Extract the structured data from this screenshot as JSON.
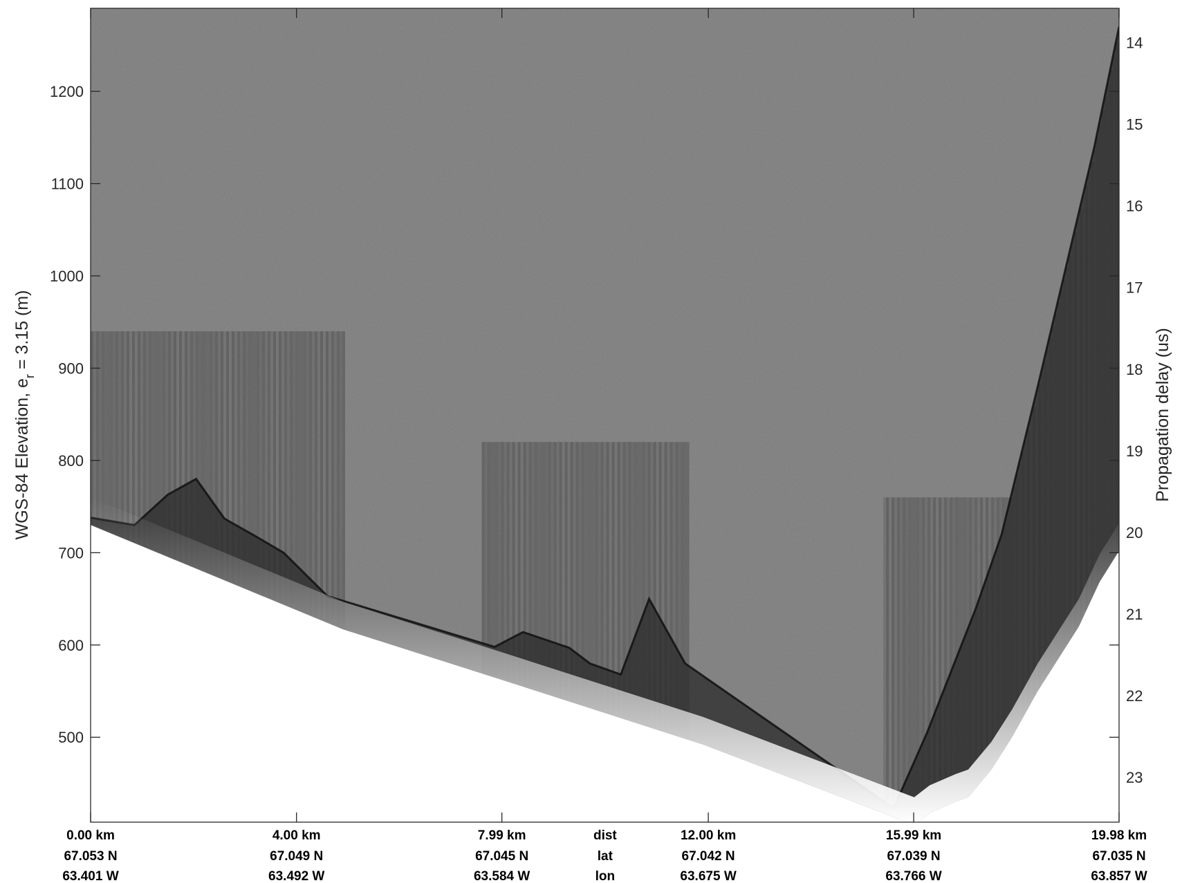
{
  "chart_data": {
    "type": "heatmap",
    "description_kind": "radar echogram",
    "title": "",
    "colormap": "grayscale",
    "left_axis": {
      "label_main": "WGS-84 Elevation, e",
      "label_sub": "r",
      "label_tail": " = 3.15 (m)",
      "ticks": [
        500,
        600,
        700,
        800,
        900,
        1000,
        1100,
        1200
      ],
      "tick_labels": [
        "500",
        "600",
        "700",
        "800",
        "900",
        "1000",
        "1100",
        "1200"
      ],
      "ylim": [
        408,
        1290
      ]
    },
    "right_axis": {
      "label": "Propagation delay (us)",
      "ticks": [
        14,
        15,
        16,
        17,
        18,
        19,
        20,
        21,
        22,
        23
      ],
      "tick_labels": [
        "14",
        "15",
        "16",
        "17",
        "18",
        "19",
        "20",
        "21",
        "22",
        "23"
      ],
      "ylim": [
        13.58,
        23.55
      ]
    },
    "x_axis": {
      "xlim": [
        0,
        19.98
      ],
      "ticks": [
        0.0,
        4.0,
        7.99,
        12.0,
        15.99,
        19.98
      ],
      "row_names": {
        "dist": "dist",
        "lat": "lat",
        "lon": "lon"
      },
      "dist_labels": [
        "0.00 km",
        "4.00 km",
        "7.99 km",
        "12.00 km",
        "15.99 km",
        "19.98 km"
      ],
      "lat_labels": [
        "67.053 N",
        "67.049 N",
        "67.045 N",
        "67.042 N",
        "67.039 N",
        "67.035 N"
      ],
      "lon_labels": [
        "63.401 W",
        "63.492 W",
        "63.584 W",
        "63.675 W",
        "63.766 W",
        "63.857 W"
      ]
    },
    "surface_profile": {
      "x_km": [
        0.0,
        0.85,
        1.5,
        2.05,
        2.6,
        3.2,
        3.75,
        4.6,
        7.85,
        8.4,
        9.3,
        9.7,
        10.3,
        10.85,
        11.55,
        15.6,
        16.25,
        17.2,
        17.7,
        18.4,
        19.5,
        19.98
      ],
      "elevation_m": [
        738,
        730,
        763,
        780,
        737,
        718,
        700,
        653,
        598,
        614,
        597,
        580,
        568,
        650,
        580,
        423,
        505,
        640,
        720,
        880,
        1140,
        1270
      ]
    },
    "bed_profile": {
      "x_km": [
        0.0,
        4.9,
        8.0,
        11.9,
        16.0,
        16.3,
        16.8,
        17.05,
        17.5,
        17.9,
        18.4,
        18.8,
        19.2,
        19.6,
        19.98
      ],
      "elevation_m": [
        730,
        617,
        562,
        492,
        405,
        418,
        430,
        435,
        465,
        500,
        550,
        585,
        620,
        668,
        702
      ]
    },
    "shading_columns": [
      {
        "x_km": [
          0.0,
          4.9
        ],
        "from_m": 940
      },
      {
        "x_km": [
          7.6,
          11.6
        ],
        "from_m": 820
      },
      {
        "x_km": [
          15.4,
          19.98
        ],
        "from_m": 760
      }
    ]
  }
}
